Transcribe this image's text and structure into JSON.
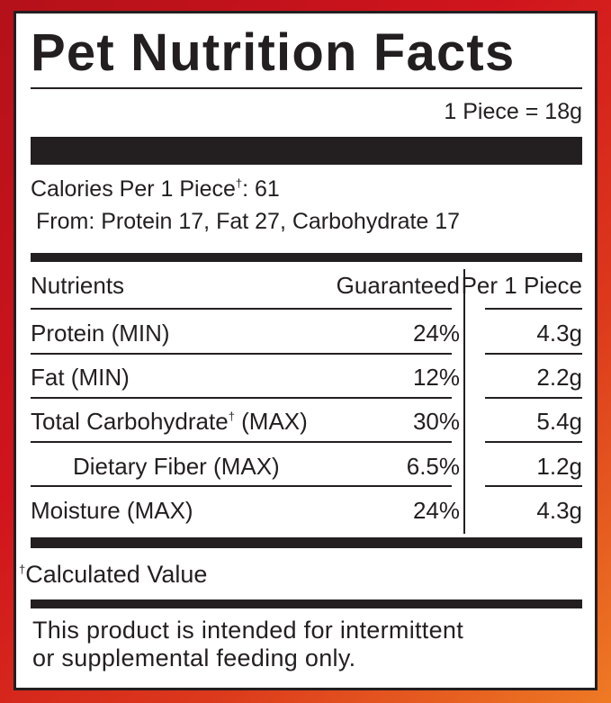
{
  "panel": {
    "title": "Pet Nutrition Facts",
    "serving_size": "1 Piece = 18g",
    "calories_prefix": "Calories Per 1 Piece",
    "calories_dagger": "†",
    "calories_suffix": ": 61",
    "calories_from": "From: Protein 17, Fat 27, Carbohydrate 17"
  },
  "table": {
    "headers": {
      "nutrients": "Nutrients",
      "guaranteed": "Guaranteed",
      "per_piece": "Per 1 Piece"
    },
    "rows": [
      {
        "name": "Protein (MIN)",
        "guaranteed": "24%",
        "per_piece": "4.3g"
      },
      {
        "name": "Fat (MIN)",
        "guaranteed": "12%",
        "per_piece": "2.2g"
      },
      {
        "name_prefix": "Total Carbohydrate",
        "name_dagger": "†",
        "name_suffix": " (MAX)",
        "guaranteed": "30%",
        "per_piece": "5.4g"
      },
      {
        "name": "Dietary Fiber (MAX)",
        "guaranteed": "6.5%",
        "per_piece": "1.2g"
      },
      {
        "name": "Moisture (MAX)",
        "guaranteed": "24%",
        "per_piece": "4.3g"
      }
    ]
  },
  "footnote": {
    "dagger": "†",
    "text": "Calculated Value"
  },
  "disclaimer": {
    "line1": "This product is intended for intermittent",
    "line2": "or supplemental feeding only."
  },
  "colors": {
    "ink": "#231f20",
    "border_red": "#c8141d",
    "border_orange": "#ee7a24",
    "panel_bg": "#ffffff"
  }
}
